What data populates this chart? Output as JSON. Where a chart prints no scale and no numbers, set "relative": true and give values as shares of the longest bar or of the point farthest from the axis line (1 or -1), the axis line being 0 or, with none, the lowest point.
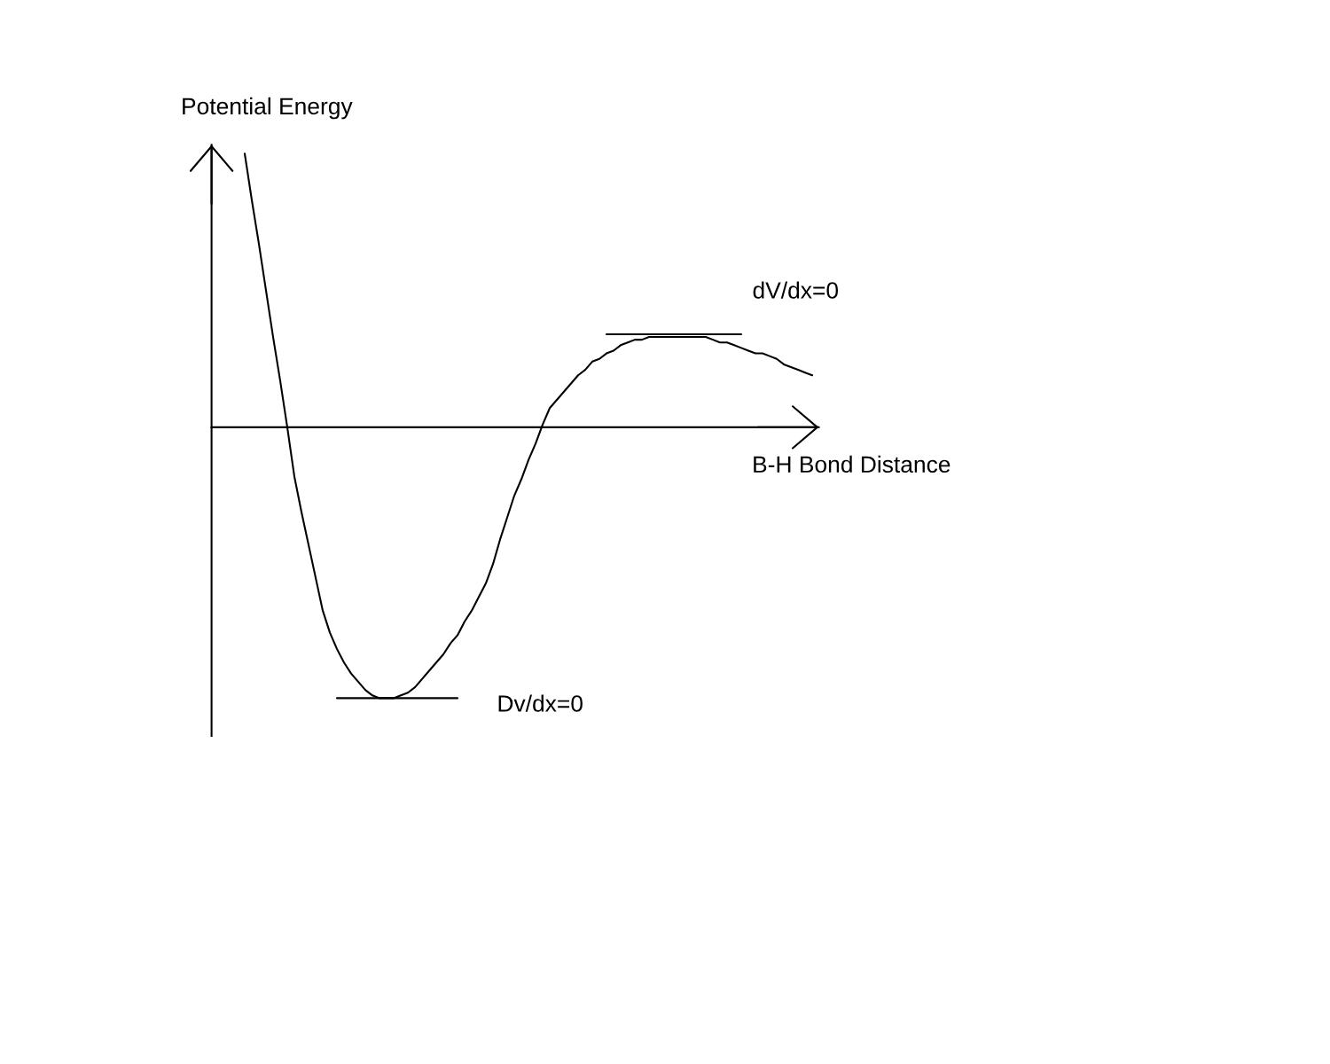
{
  "chart_data": {
    "type": "line",
    "relative": true,
    "ylabel": "Potential Energy",
    "xlabel": "B-H Bond Distance",
    "categories": [
      null,
      null,
      null,
      null,
      null,
      null,
      null,
      null,
      null,
      null,
      null,
      null,
      null,
      null,
      null,
      null,
      null,
      null,
      null,
      null,
      null,
      null,
      null,
      null,
      null,
      null,
      null,
      null,
      null,
      null,
      null,
      null,
      null,
      null,
      null,
      null,
      null,
      null,
      null,
      null,
      null,
      null,
      null,
      null,
      null,
      null,
      null,
      null,
      null,
      null,
      null,
      null,
      null,
      null,
      null,
      null,
      null,
      null,
      null,
      null,
      null,
      null,
      null,
      null,
      null,
      null,
      null,
      null,
      null,
      null,
      null,
      null,
      null,
      null,
      null,
      null,
      null,
      null,
      null,
      null,
      null
    ],
    "series": [
      {
        "color": "#000000",
        "values": [
          1.0,
          0.83,
          0.67,
          0.5,
          0.33,
          0.17,
          0.0,
          -0.18,
          -0.31,
          -0.43,
          -0.55,
          -0.67,
          -0.75,
          -0.81,
          -0.86,
          -0.9,
          -0.93,
          -0.96,
          -0.98,
          -0.99,
          -0.99,
          -0.99,
          -0.98,
          -0.97,
          -0.95,
          -0.92,
          -0.89,
          -0.86,
          -0.83,
          -0.79,
          -0.76,
          -0.71,
          -0.67,
          -0.62,
          -0.57,
          -0.5,
          -0.41,
          -0.33,
          -0.25,
          -0.19,
          -0.12,
          -0.06,
          0.01,
          0.07,
          0.1,
          0.13,
          0.16,
          0.19,
          0.21,
          0.24,
          0.25,
          0.27,
          0.28,
          0.3,
          0.31,
          0.32,
          0.32,
          0.33,
          0.33,
          0.33,
          0.33,
          0.33,
          0.33,
          0.33,
          0.33,
          0.33,
          0.32,
          0.31,
          0.31,
          0.3,
          0.29,
          0.28,
          0.27,
          0.27,
          0.26,
          0.25,
          0.23,
          0.22,
          0.21,
          0.2,
          0.19
        ]
      },
      {
        "name": "Dv/dx=0",
        "color": "#000000",
        "values": [
          null,
          null,
          null,
          null,
          null,
          null,
          null,
          null,
          null,
          null,
          null,
          null,
          null,
          -0.99,
          -0.99,
          -0.99,
          -0.99,
          -0.99,
          -0.99,
          -0.99,
          -0.99,
          -0.99,
          -0.99,
          -0.99,
          -0.99,
          -0.99,
          -0.99,
          -0.99,
          -0.99,
          -0.99,
          -0.99,
          null,
          null,
          null,
          null,
          null,
          null,
          null,
          null,
          null,
          null,
          null,
          null,
          null,
          null,
          null,
          null,
          null,
          null,
          null,
          null,
          null,
          null,
          null,
          null,
          null,
          null,
          null,
          null,
          null,
          null,
          null,
          null,
          null,
          null,
          null,
          null,
          null,
          null,
          null,
          null,
          null,
          null,
          null,
          null,
          null,
          null,
          null,
          null,
          null,
          null
        ]
      },
      {
        "name": "dV/dx=0",
        "color": "#000000",
        "values": [
          null,
          null,
          null,
          null,
          null,
          null,
          null,
          null,
          null,
          null,
          null,
          null,
          null,
          null,
          null,
          null,
          null,
          null,
          null,
          null,
          null,
          null,
          null,
          null,
          null,
          null,
          null,
          null,
          null,
          null,
          null,
          null,
          null,
          null,
          null,
          null,
          null,
          null,
          null,
          null,
          null,
          null,
          null,
          null,
          null,
          null,
          null,
          null,
          null,
          null,
          null,
          0.34,
          0.34,
          0.34,
          0.34,
          0.34,
          0.34,
          0.34,
          0.34,
          0.34,
          0.34,
          0.34,
          0.34,
          0.34,
          0.34,
          0.34,
          0.34,
          0.34,
          0.34,
          0.34,
          0.34,
          null,
          null,
          null,
          null,
          null,
          null,
          null,
          null,
          null,
          null
        ]
      }
    ]
  }
}
